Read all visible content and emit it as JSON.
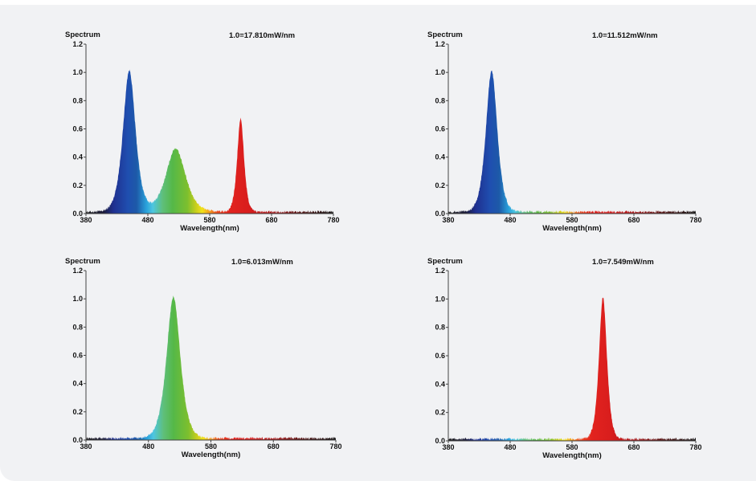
{
  "chart_data": [
    {
      "type": "area",
      "ylabel": "Spectrum",
      "xlabel": "Wavelength(nm)",
      "annotation": "1.0=17.810mW/nm",
      "xlim": [
        380,
        780
      ],
      "ylim": [
        0,
        1.2
      ],
      "xticks": [
        380,
        480,
        580,
        680,
        780
      ],
      "yticks": [
        "0.0",
        "0.2",
        "0.4",
        "0.6",
        "0.8",
        "1.0",
        "1.2"
      ],
      "peaks": [
        {
          "center": 450,
          "height": 1.0,
          "width": 11
        },
        {
          "center": 525,
          "height": 0.45,
          "width": 17
        },
        {
          "center": 630,
          "height": 0.66,
          "width": 6
        }
      ]
    },
    {
      "type": "area",
      "ylabel": "Spectrum",
      "xlabel": "Wavelength(nm)",
      "annotation": "1.0=11.512mW/nm",
      "xlim": [
        380,
        780
      ],
      "ylim": [
        0,
        1.2
      ],
      "xticks": [
        380,
        480,
        580,
        680,
        780
      ],
      "yticks": [
        "0.0",
        "0.2",
        "0.4",
        "0.6",
        "0.8",
        "1.0",
        "1.2"
      ],
      "peaks": [
        {
          "center": 450,
          "height": 1.0,
          "width": 10
        }
      ]
    },
    {
      "type": "area",
      "ylabel": "Spectrum",
      "xlabel": "Wavelength(nm)",
      "annotation": "1.0=6.013mW/nm",
      "xlim": [
        380,
        780
      ],
      "ylim": [
        0,
        1.2
      ],
      "xticks": [
        380,
        480,
        580,
        680,
        780
      ],
      "yticks": [
        "0.0",
        "0.2",
        "0.4",
        "0.6",
        "0.8",
        "1.0",
        "1.2"
      ],
      "peaks": [
        {
          "center": 520,
          "height": 1.0,
          "width": 12
        }
      ]
    },
    {
      "type": "area",
      "ylabel": "Spectrum",
      "xlabel": "Wavelength(nm)",
      "annotation": "1.0=7.549mW/nm",
      "xlim": [
        380,
        780
      ],
      "ylim": [
        0,
        1.2
      ],
      "xticks": [
        380,
        480,
        580,
        680,
        780
      ],
      "yticks": [
        "0.0",
        "0.2",
        "0.4",
        "0.6",
        "0.8",
        "1.0",
        "1.2"
      ],
      "peaks": [
        {
          "center": 630,
          "height": 1.0,
          "width": 7
        }
      ]
    }
  ]
}
